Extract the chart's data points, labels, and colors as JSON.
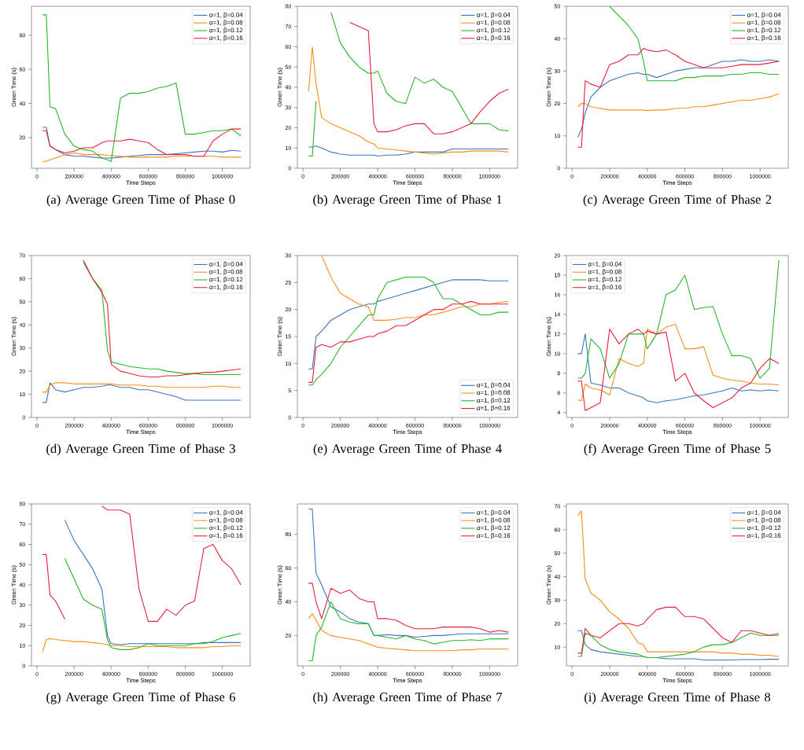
{
  "chart_data": [
    {
      "type": "line",
      "title": "(a) Average Green Time of Phase 0",
      "xlabel": "Time Steps",
      "ylabel": "Green Time (s)",
      "legend": "top right",
      "xlim": [
        -30000,
        1150000
      ],
      "ylim": [
        2,
        97
      ],
      "xticks": [
        0,
        200000,
        400000,
        600000,
        800000,
        1000000
      ],
      "yticks": [
        20,
        40,
        60,
        80
      ],
      "x": [
        30000,
        50000,
        70000,
        100000,
        150000,
        200000,
        250000,
        300000,
        350000,
        380000,
        400000,
        450000,
        500000,
        550000,
        600000,
        650000,
        700000,
        750000,
        800000,
        850000,
        900000,
        950000,
        1000000,
        1050000,
        1100000
      ],
      "series": [
        {
          "name": "α=1, β=0.04",
          "color": "#3a76c0",
          "values": [
            26,
            26,
            15,
            13,
            10,
            9,
            9,
            8.5,
            8,
            8,
            8,
            8.5,
            9,
            9.5,
            10,
            10,
            10,
            10.5,
            11,
            11.5,
            12,
            12,
            11.5,
            12.5,
            12
          ]
        },
        {
          "name": "α=1, β=0.08",
          "color": "#ff8c1a",
          "values": [
            6,
            6,
            7,
            8,
            10,
            11,
            10,
            10,
            10,
            9.5,
            9.5,
            9,
            8.5,
            8.5,
            8.5,
            8.5,
            8.5,
            9,
            9,
            9,
            9,
            9,
            8.5,
            8.5,
            8.5
          ]
        },
        {
          "name": "α=1, β=0.12",
          "color": "#2ab52a",
          "values": [
            92,
            92,
            38,
            37,
            22,
            15,
            13,
            12,
            8,
            7,
            6,
            43,
            46,
            46,
            47,
            49,
            50,
            52,
            22,
            22,
            23,
            24,
            24,
            25,
            21
          ]
        },
        {
          "name": "α=1, β=0.16",
          "color": "#e8203a",
          "values": [
            24,
            24,
            15,
            13,
            11,
            12,
            14,
            14,
            17,
            18,
            18,
            18,
            19,
            18,
            17,
            13,
            10,
            10,
            10,
            9,
            9,
            18,
            22,
            25,
            25
          ]
        }
      ]
    },
    {
      "type": "line",
      "title": "(b) Average Green Time of Phase 1",
      "xlabel": "Time Steps",
      "ylabel": "Green Time (s)",
      "legend": "top right",
      "xlim": [
        -30000,
        1150000
      ],
      "ylim": [
        0,
        80
      ],
      "xticks": [
        0,
        200000,
        400000,
        600000,
        800000,
        1000000
      ],
      "yticks": [
        0,
        10,
        20,
        30,
        40,
        50,
        60,
        70,
        80
      ],
      "x": [
        30000,
        50000,
        70000,
        100000,
        150000,
        200000,
        250000,
        300000,
        350000,
        380000,
        400000,
        450000,
        500000,
        550000,
        600000,
        650000,
        700000,
        750000,
        800000,
        850000,
        900000,
        950000,
        1000000,
        1050000,
        1100000
      ],
      "series": [
        {
          "name": "α=1, β=0.04",
          "color": "#3a76c0",
          "values": [
            10.5,
            10.5,
            11,
            10,
            8,
            7,
            6.5,
            6.5,
            6.5,
            6.5,
            6,
            6.5,
            6.5,
            7,
            8,
            8,
            8,
            8,
            9.5,
            9.5,
            9.5,
            9.5,
            9.5,
            9.5,
            9.5
          ]
        },
        {
          "name": "α=1, β=0.08",
          "color": "#ff8c1a",
          "values": [
            38,
            60,
            42,
            25,
            22,
            20,
            18,
            16,
            13,
            12,
            10,
            9.5,
            9,
            8.5,
            8,
            7.5,
            7,
            7.5,
            8,
            8,
            8.5,
            8.5,
            8.5,
            8.5,
            8
          ]
        },
        {
          "name": "α=1, β=0.12",
          "color": "#2ab52a",
          "values": [
            6,
            6,
            33,
            null,
            77,
            62,
            55,
            50,
            47,
            47,
            48,
            37,
            33,
            32,
            45,
            42,
            44,
            40,
            38,
            30,
            22,
            22,
            22,
            19,
            18.5
          ]
        },
        {
          "name": "α=1, β=0.16",
          "color": "#e8203a",
          "values": [
            null,
            null,
            null,
            null,
            null,
            null,
            72,
            70,
            68,
            22,
            18,
            18,
            19,
            21,
            22,
            22,
            17,
            17,
            18,
            20,
            22,
            28,
            33,
            37,
            39
          ]
        }
      ]
    },
    {
      "type": "line",
      "title": "(c) Average Green Time of Phase 2",
      "xlabel": "Time Steps",
      "ylabel": "Green Time (s)",
      "legend": "top right",
      "xlim": [
        -30000,
        1150000
      ],
      "ylim": [
        0,
        50
      ],
      "xticks": [
        0,
        200000,
        400000,
        600000,
        800000,
        1000000
      ],
      "yticks": [
        0,
        10,
        20,
        30,
        40,
        50
      ],
      "x": [
        30000,
        50000,
        70000,
        100000,
        150000,
        200000,
        250000,
        300000,
        350000,
        380000,
        400000,
        450000,
        500000,
        550000,
        600000,
        650000,
        700000,
        750000,
        800000,
        850000,
        900000,
        950000,
        1000000,
        1050000,
        1100000
      ],
      "series": [
        {
          "name": "α=1, β=0.04",
          "color": "#3a76c0",
          "values": [
            9.5,
            12,
            17,
            22,
            25,
            27,
            28,
            29,
            29.5,
            29,
            29,
            28,
            29,
            30,
            30.5,
            31,
            31,
            32,
            33,
            33,
            33.5,
            33,
            33,
            33.5,
            33
          ]
        },
        {
          "name": "α=1, β=0.08",
          "color": "#ff8c1a",
          "values": [
            19,
            20,
            20,
            19,
            18.5,
            18,
            18,
            18,
            18,
            18,
            17.8,
            18,
            18,
            18.5,
            18.5,
            19,
            19,
            19.5,
            20,
            20.5,
            21,
            21,
            21.5,
            22,
            23
          ]
        },
        {
          "name": "α=1, β=0.12",
          "color": "#2ab52a",
          "values": [
            null,
            null,
            null,
            null,
            null,
            50,
            47,
            44,
            40,
            33,
            27,
            27,
            27,
            27,
            28,
            28,
            28.5,
            28.5,
            28.5,
            29,
            29,
            29.5,
            29.5,
            29,
            29
          ]
        },
        {
          "name": "α=1, β=0.16",
          "color": "#e8203a",
          "values": [
            6.5,
            6.5,
            27,
            26,
            25,
            32,
            33,
            35,
            35,
            37,
            36.5,
            36,
            36.5,
            35,
            33,
            32,
            31,
            31,
            31,
            31.5,
            32,
            32,
            32,
            32.5,
            33
          ]
        }
      ]
    },
    {
      "type": "line",
      "title": "(d) Average Green Time of Phase 3",
      "xlabel": "Time Steps",
      "ylabel": "Green Time (s)",
      "legend": "top right",
      "xlim": [
        -30000,
        1150000
      ],
      "ylim": [
        0,
        70
      ],
      "xticks": [
        0,
        200000,
        400000,
        600000,
        800000,
        1000000
      ],
      "yticks": [
        0,
        10,
        20,
        30,
        40,
        50,
        60,
        70
      ],
      "x": [
        30000,
        50000,
        70000,
        100000,
        150000,
        200000,
        250000,
        300000,
        350000,
        380000,
        400000,
        450000,
        500000,
        550000,
        600000,
        650000,
        700000,
        750000,
        800000,
        850000,
        900000,
        950000,
        1000000,
        1050000,
        1100000
      ],
      "series": [
        {
          "name": "α=1, β=0.04",
          "color": "#3a76c0",
          "values": [
            6.5,
            6.5,
            15,
            12,
            11,
            12,
            13,
            13,
            13.5,
            14,
            14,
            13,
            13,
            12,
            12,
            11,
            10,
            9,
            7.5,
            7.5,
            7.5,
            7.5,
            7.5,
            7.5,
            7.5
          ]
        },
        {
          "name": "α=1, β=0.08",
          "color": "#ff8c1a",
          "values": [
            11,
            11,
            14,
            15,
            15,
            14.5,
            14.5,
            14.5,
            14.5,
            14.5,
            14.5,
            14,
            14,
            14,
            13.5,
            13.5,
            13,
            13,
            13,
            13,
            13,
            13.5,
            13.5,
            13,
            13
          ]
        },
        {
          "name": "α=1, β=0.12",
          "color": "#2ab52a",
          "values": [
            null,
            null,
            null,
            null,
            null,
            null,
            67,
            60,
            55,
            29,
            24,
            23,
            22,
            21.5,
            21,
            21,
            20,
            19.5,
            19,
            19,
            18.5,
            18.5,
            18.5,
            18.5,
            18.5
          ]
        },
        {
          "name": "α=1, β=0.16",
          "color": "#e8203a",
          "values": [
            null,
            null,
            null,
            null,
            null,
            null,
            68,
            60,
            54,
            49,
            23,
            20,
            19,
            18,
            17.5,
            17.5,
            18,
            18,
            18.5,
            19,
            19.5,
            19.5,
            20,
            20.5,
            21
          ]
        }
      ]
    },
    {
      "type": "line",
      "title": "(e) Average Green Time of Phase 4",
      "xlabel": "Time Steps",
      "ylabel": "Green Time (s)",
      "legend": "bottom right",
      "xlim": [
        -30000,
        1150000
      ],
      "ylim": [
        0,
        30
      ],
      "xticks": [
        0,
        200000,
        400000,
        600000,
        800000,
        1000000
      ],
      "yticks": [
        0,
        5,
        10,
        15,
        20,
        25,
        30
      ],
      "x": [
        30000,
        50000,
        70000,
        100000,
        150000,
        200000,
        250000,
        300000,
        350000,
        380000,
        400000,
        450000,
        500000,
        550000,
        600000,
        650000,
        700000,
        750000,
        800000,
        850000,
        900000,
        950000,
        1000000,
        1050000,
        1100000
      ],
      "series": [
        {
          "name": "α=1, β=0.04",
          "color": "#3a76c0",
          "values": [
            9,
            9,
            15,
            16,
            18,
            19,
            20,
            20.5,
            21,
            21,
            21.5,
            22,
            22.5,
            23,
            23.5,
            24,
            24.5,
            25,
            25.5,
            25.5,
            25.5,
            25.5,
            25.3,
            25.3,
            25.3
          ]
        },
        {
          "name": "α=1, β=0.08",
          "color": "#ff8c1a",
          "values": [
            null,
            null,
            null,
            30,
            26,
            23,
            22,
            21,
            20.5,
            18,
            18,
            18,
            18.2,
            18.5,
            18.5,
            19,
            19,
            19.5,
            20,
            20.5,
            20.5,
            21,
            21,
            21.3,
            21.5
          ]
        },
        {
          "name": "α=1, β=0.12",
          "color": "#2ab52a",
          "values": [
            6,
            6,
            7,
            8,
            10,
            13,
            15,
            17,
            19,
            19,
            22,
            25,
            25.5,
            26,
            26,
            26,
            25,
            22,
            22,
            21,
            20,
            19,
            19,
            19.5,
            19.5
          ]
        },
        {
          "name": "α=1, β=0.16",
          "color": "#e8203a",
          "values": [
            6.5,
            6.5,
            13,
            13.5,
            13,
            14,
            14,
            14.5,
            15,
            15,
            15.5,
            16,
            17,
            17,
            18,
            19,
            20,
            20,
            21,
            21,
            21.5,
            21,
            21,
            21,
            21
          ]
        }
      ]
    },
    {
      "type": "line",
      "title": "(f) Average Green Time of Phase 5",
      "xlabel": "Time Steps",
      "ylabel": "Green Time (s)",
      "legend": "top left",
      "xlim": [
        -30000,
        1150000
      ],
      "ylim": [
        3.5,
        20
      ],
      "xticks": [
        0,
        200000,
        400000,
        600000,
        800000,
        1000000
      ],
      "yticks": [
        4,
        6,
        8,
        10,
        12,
        14,
        16,
        18,
        20
      ],
      "x": [
        30000,
        50000,
        70000,
        100000,
        150000,
        200000,
        250000,
        300000,
        350000,
        380000,
        400000,
        450000,
        500000,
        550000,
        600000,
        650000,
        700000,
        750000,
        800000,
        850000,
        900000,
        950000,
        1000000,
        1050000,
        1100000
      ],
      "series": [
        {
          "name": "α=1, β=0.04",
          "color": "#3a76c0",
          "values": [
            10,
            10,
            12,
            7,
            6.8,
            6.5,
            6.5,
            6,
            5.7,
            5.5,
            5.2,
            5,
            5.2,
            5.3,
            5.5,
            5.7,
            5.8,
            6,
            6.2,
            6.5,
            6.2,
            6.3,
            6.2,
            6.3,
            6.2
          ]
        },
        {
          "name": "α=1, β=0.08",
          "color": "#ff8c1a",
          "values": [
            5.3,
            5.2,
            6.9,
            6.5,
            6.3,
            5.8,
            9.5,
            9,
            8.7,
            9,
            12.5,
            12,
            12.7,
            13,
            10.5,
            10.5,
            10.7,
            7.8,
            7.5,
            7.3,
            7.2,
            7,
            6.9,
            6.9,
            6.8
          ]
        },
        {
          "name": "α=1, β=0.12",
          "color": "#2ab52a",
          "values": [
            7.5,
            7.5,
            8,
            11.5,
            10.5,
            7.5,
            9,
            12,
            12,
            12,
            10.5,
            12,
            16,
            16.5,
            18,
            14.5,
            14.7,
            14.8,
            12,
            9.8,
            9.8,
            9.5,
            7.5,
            8.5,
            19.5
          ]
        },
        {
          "name": "α=1, β=0.16",
          "color": "#e8203a",
          "values": [
            7.2,
            7.2,
            4.2,
            4.5,
            5,
            12.5,
            11,
            12,
            12.5,
            12,
            12.3,
            12,
            12.2,
            7.2,
            8,
            6,
            5.2,
            4.5,
            5,
            5.5,
            6.5,
            7,
            8.5,
            9.5,
            9
          ]
        }
      ]
    },
    {
      "type": "line",
      "title": "(g) Average Green Time of Phase 6",
      "xlabel": "Time Steps",
      "ylabel": "Green Time (s)",
      "legend": "top right",
      "xlim": [
        -30000,
        1150000
      ],
      "ylim": [
        0,
        80
      ],
      "xticks": [
        0,
        200000,
        400000,
        600000,
        800000,
        1000000
      ],
      "yticks": [
        0,
        10,
        20,
        30,
        40,
        50,
        60,
        70,
        80
      ],
      "x": [
        30000,
        50000,
        70000,
        100000,
        150000,
        200000,
        250000,
        300000,
        350000,
        380000,
        400000,
        450000,
        500000,
        550000,
        600000,
        650000,
        700000,
        750000,
        800000,
        850000,
        900000,
        950000,
        1000000,
        1050000,
        1100000
      ],
      "series": [
        {
          "name": "α=1, β=0.04",
          "color": "#3a76c0",
          "values": [
            null,
            null,
            null,
            null,
            72,
            62,
            55,
            48,
            38,
            15,
            11,
            10.5,
            11,
            11,
            11,
            11,
            11,
            11,
            11,
            11,
            11.5,
            11.5,
            11.5,
            11.5,
            11.5
          ]
        },
        {
          "name": "α=1, β=0.08",
          "color": "#ff8c1a",
          "values": [
            7,
            13,
            13.5,
            13,
            12.5,
            12,
            12,
            11.5,
            11,
            10.5,
            10,
            10,
            9.5,
            9.5,
            9.5,
            9.5,
            9.5,
            9,
            9,
            9,
            9,
            9.5,
            9.5,
            10,
            10
          ]
        },
        {
          "name": "α=1, β=0.12",
          "color": "#2ab52a",
          "values": [
            null,
            null,
            null,
            null,
            53,
            43,
            33,
            30,
            28,
            13,
            9,
            8,
            8,
            9,
            11,
            10,
            10,
            10,
            10,
            11,
            11,
            12,
            14,
            15,
            16
          ]
        },
        {
          "name": "α=1, β=0.16",
          "color": "#e8203a",
          "values": [
            55,
            55,
            35,
            32,
            23,
            null,
            null,
            null,
            79,
            77,
            77,
            77,
            75,
            38,
            22,
            22,
            28,
            25,
            30,
            32,
            58,
            60,
            52,
            48,
            40
          ]
        }
      ]
    },
    {
      "type": "line",
      "title": "(h) Average Green Time of Phase 7",
      "xlabel": "Time Steps",
      "ylabel": "Green Time (s)",
      "legend": "top right",
      "xlim": [
        -30000,
        1150000
      ],
      "ylim": [
        2,
        98
      ],
      "xticks": [
        0,
        200000,
        400000,
        600000,
        800000,
        1000000
      ],
      "yticks": [
        20,
        40,
        60,
        80
      ],
      "x": [
        30000,
        50000,
        70000,
        100000,
        150000,
        200000,
        250000,
        300000,
        350000,
        380000,
        400000,
        450000,
        500000,
        550000,
        600000,
        650000,
        700000,
        750000,
        800000,
        850000,
        900000,
        950000,
        1000000,
        1050000,
        1100000
      ],
      "series": [
        {
          "name": "α=1, β=0.04",
          "color": "#3a76c0",
          "values": [
            95,
            95,
            57,
            50,
            37,
            34,
            30,
            28,
            27,
            20,
            20,
            20.5,
            20,
            20,
            19,
            19.5,
            20,
            20,
            20.5,
            21,
            21,
            21,
            21,
            21,
            21
          ]
        },
        {
          "name": "α=1, β=0.08",
          "color": "#ff8c1a",
          "values": [
            30,
            33,
            29,
            23,
            20,
            19,
            18,
            17,
            15,
            14,
            13,
            12.5,
            12,
            11.5,
            11,
            11,
            11,
            11,
            11,
            11.5,
            11.5,
            12,
            12,
            12,
            12
          ]
        },
        {
          "name": "α=1, β=0.12",
          "color": "#2ab52a",
          "values": [
            5,
            5,
            20,
            25,
            40,
            30,
            28,
            27,
            27,
            20,
            20,
            19,
            18,
            20,
            18,
            17,
            15,
            16,
            17,
            17,
            17.5,
            17,
            18,
            18,
            18
          ]
        },
        {
          "name": "α=1, β=0.16",
          "color": "#e8203a",
          "values": [
            51,
            51,
            40,
            30,
            48,
            45,
            47,
            42,
            40,
            40,
            30,
            30,
            29,
            26,
            24,
            24,
            24,
            25,
            25,
            25,
            25,
            24,
            22,
            23,
            22
          ]
        }
      ]
    },
    {
      "type": "line",
      "title": "(i) Average Green Time of Phase 8",
      "xlabel": "Time Steps",
      "ylabel": "Green Time (s)",
      "legend": "top right",
      "xlim": [
        -30000,
        1150000
      ],
      "ylim": [
        2,
        71
      ],
      "xticks": [
        0,
        200000,
        400000,
        600000,
        800000,
        1000000
      ],
      "yticks": [
        10,
        20,
        30,
        40,
        50,
        60,
        70
      ],
      "x": [
        30000,
        50000,
        70000,
        100000,
        150000,
        200000,
        250000,
        300000,
        350000,
        380000,
        400000,
        450000,
        500000,
        550000,
        600000,
        650000,
        700000,
        750000,
        800000,
        850000,
        900000,
        950000,
        1000000,
        1050000,
        1100000
      ],
      "series": [
        {
          "name": "α=1, β=0.04",
          "color": "#3a76c0",
          "values": [
            17,
            17,
            11,
            9,
            8,
            7.5,
            7,
            6.5,
            6,
            6,
            5.5,
            5.5,
            5,
            5,
            5,
            5,
            4.5,
            4.5,
            4.5,
            4.5,
            4.7,
            4.7,
            4.7,
            4.8,
            4.8
          ]
        },
        {
          "name": "α=1, β=0.08",
          "color": "#ff8c1a",
          "values": [
            66,
            68,
            39,
            33,
            30,
            25,
            22,
            18,
            12,
            11,
            8,
            8,
            8,
            8,
            8,
            8,
            8,
            8,
            7.5,
            7.5,
            7,
            7,
            6.5,
            6.5,
            6
          ]
        },
        {
          "name": "α=1, β=0.12",
          "color": "#2ab52a",
          "values": [
            6,
            6,
            16,
            15,
            11,
            9,
            8,
            7.5,
            7,
            6,
            5.5,
            5.5,
            6,
            6.5,
            7,
            8,
            10,
            11,
            11,
            12,
            14,
            16,
            15,
            15,
            15
          ]
        },
        {
          "name": "α=1, β=0.16",
          "color": "#e8203a",
          "values": [
            7.5,
            7.5,
            18,
            15,
            14,
            17,
            20,
            20,
            19,
            20,
            22,
            26,
            27,
            27,
            23,
            23,
            22,
            18,
            14,
            12,
            17,
            17,
            16,
            15,
            15.8
          ]
        }
      ]
    }
  ]
}
